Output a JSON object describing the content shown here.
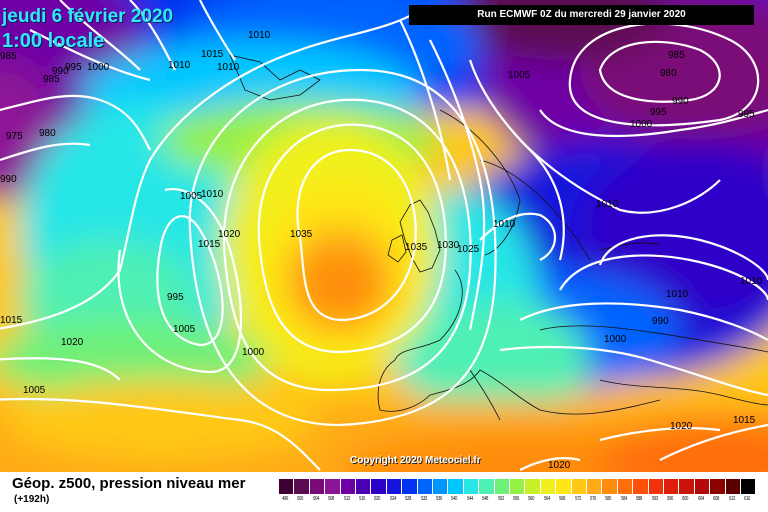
{
  "header": {
    "date_line1": "jeudi 6 février 2020",
    "date_line2": "1:00 locale",
    "run_info": "Run ECMWF 0Z du mercredi 29 janvier 2020",
    "copyright": "Copyright 2020 Meteociel.fr"
  },
  "footer": {
    "title": "Géop. z500, pression niveau mer",
    "subtitle": "(+192h)"
  },
  "legend": {
    "values": [
      "496",
      "500",
      "504",
      "508",
      "512",
      "516",
      "520",
      "524",
      "528",
      "532",
      "536",
      "540",
      "544",
      "548",
      "552",
      "556",
      "560",
      "564",
      "568",
      "572",
      "576",
      "580",
      "584",
      "588",
      "592",
      "596",
      "600",
      "604",
      "608",
      "612",
      "616"
    ],
    "colors": [
      "#3d0030",
      "#5c0a50",
      "#7a0a78",
      "#8c1496",
      "#6e00a5",
      "#4b00b4",
      "#2d00c8",
      "#1414dc",
      "#0032f0",
      "#0064ff",
      "#0096ff",
      "#00c8ff",
      "#28e6e6",
      "#50f0b4",
      "#6ef078",
      "#96f046",
      "#c8f028",
      "#f0f01e",
      "#ffe614",
      "#ffc814",
      "#ffaa14",
      "#ff8c0a",
      "#ff6e0a",
      "#ff500a",
      "#f0320a",
      "#dc1e0a",
      "#c8140a",
      "#b40a0a",
      "#8c0000",
      "#5a0000",
      "#000000"
    ]
  },
  "map": {
    "isobar_labels": [
      {
        "value": "1010"
      },
      {
        "value": "1015"
      },
      {
        "value": "1010"
      },
      {
        "value": "1010"
      },
      {
        "value": "1000"
      },
      {
        "value": "995"
      },
      {
        "value": "990"
      },
      {
        "value": "985"
      },
      {
        "value": "985"
      },
      {
        "value": "975"
      },
      {
        "value": "980"
      },
      {
        "value": "990"
      },
      {
        "value": "1005"
      },
      {
        "value": "985"
      },
      {
        "value": "980"
      },
      {
        "value": "990"
      },
      {
        "value": "995"
      },
      {
        "value": "995"
      },
      {
        "value": "1000"
      },
      {
        "value": "1010"
      },
      {
        "value": "1010"
      },
      {
        "value": "1005"
      },
      {
        "value": "1010"
      },
      {
        "value": "1020"
      },
      {
        "value": "1015"
      },
      {
        "value": "1035"
      },
      {
        "value": "1035"
      },
      {
        "value": "1030"
      },
      {
        "value": "1025"
      },
      {
        "value": "1010"
      },
      {
        "value": "1010"
      },
      {
        "value": "995"
      },
      {
        "value": "990"
      },
      {
        "value": "1005"
      },
      {
        "value": "1000"
      },
      {
        "value": "1015"
      },
      {
        "value": "1020"
      },
      {
        "value": "1000"
      },
      {
        "value": "1005"
      },
      {
        "value": "1020"
      },
      {
        "value": "1015"
      },
      {
        "value": "1020"
      },
      {
        "value": "1015"
      },
      {
        "value": "1015"
      },
      {
        "value": "1020"
      }
    ]
  }
}
